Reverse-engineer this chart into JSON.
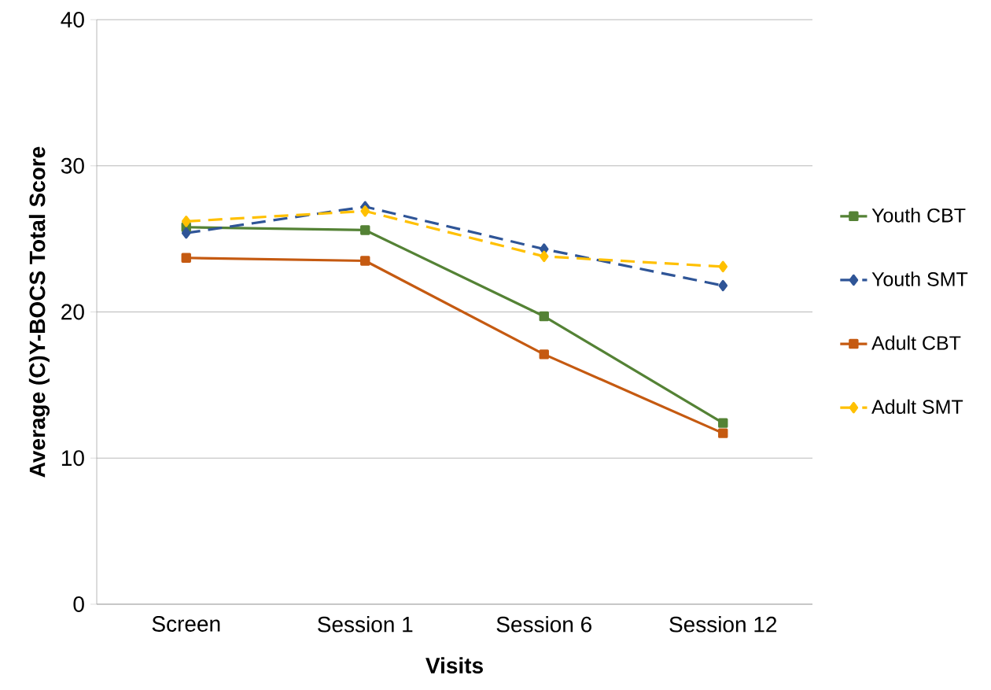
{
  "chart_data": {
    "type": "line",
    "xlabel": "Visits",
    "ylabel": "Average (C)Y-BOCS Total Score",
    "categories": [
      "Screen",
      "Session 1",
      "Session 6",
      "Session 12"
    ],
    "series": [
      {
        "name": "Youth CBT",
        "color": "#548235",
        "marker": "square",
        "line_style": "solid",
        "values": [
          25.8,
          25.6,
          19.7,
          12.4
        ]
      },
      {
        "name": "Youth SMT",
        "color": "#2f5597",
        "marker": "diamond",
        "line_style": "dashed",
        "values": [
          25.4,
          27.2,
          24.3,
          21.8
        ]
      },
      {
        "name": "Adult CBT",
        "color": "#c55a11",
        "marker": "square",
        "line_style": "solid",
        "values": [
          23.7,
          23.5,
          17.1,
          11.7
        ]
      },
      {
        "name": "Adult SMT",
        "color": "#ffc000",
        "marker": "diamond",
        "line_style": "dashed",
        "values": [
          26.2,
          26.9,
          23.8,
          23.1
        ]
      }
    ],
    "ylim": [
      0,
      40
    ],
    "yticks": [
      0,
      10,
      20,
      30,
      40
    ],
    "grid": "y",
    "legend": "right"
  }
}
